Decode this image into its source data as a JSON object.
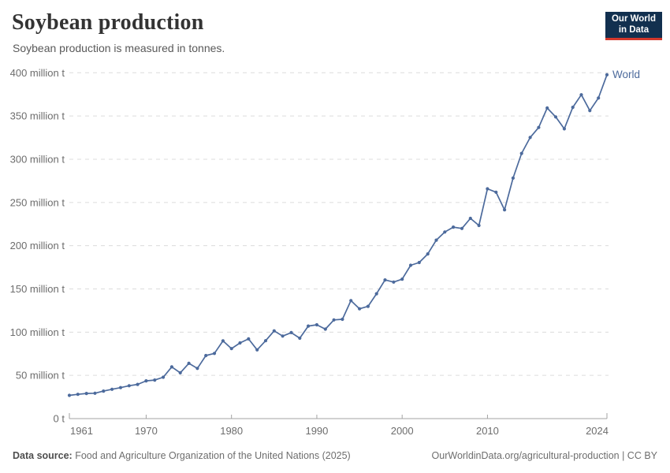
{
  "header": {
    "title": "Soybean production",
    "subtitle": "Soybean production is measured in tonnes."
  },
  "logo": {
    "text": "Our World\nin Data",
    "bg_color": "#12304f",
    "accent_color": "#d3382c"
  },
  "chart_data": {
    "type": "line",
    "title": "Soybean production",
    "unit": "tonnes",
    "values_unit": "million tonnes",
    "grid": "horizontal dashed",
    "legend_position": "end-of-line label",
    "markers": true,
    "xlim": [
      1961,
      2024
    ],
    "ylim": [
      0,
      400
    ],
    "x_ticks": [
      {
        "year": 1961,
        "label": "1961"
      },
      {
        "year": 1970,
        "label": "1970"
      },
      {
        "year": 1980,
        "label": "1980"
      },
      {
        "year": 1990,
        "label": "1990"
      },
      {
        "year": 2000,
        "label": "2000"
      },
      {
        "year": 2010,
        "label": "2010"
      },
      {
        "year": 2024,
        "label": "2024"
      }
    ],
    "y_ticks": [
      {
        "value": 0,
        "label": "0 t"
      },
      {
        "value": 50,
        "label": "50 million t"
      },
      {
        "value": 100,
        "label": "100 million t"
      },
      {
        "value": 150,
        "label": "150 million t"
      },
      {
        "value": 200,
        "label": "200 million t"
      },
      {
        "value": 250,
        "label": "250 million t"
      },
      {
        "value": 300,
        "label": "300 million t"
      },
      {
        "value": 350,
        "label": "350 million t"
      },
      {
        "value": 400,
        "label": "400 million t"
      }
    ],
    "series": [
      {
        "name": "World",
        "color": "#4c6a9c",
        "x": [
          1961,
          1962,
          1963,
          1964,
          1965,
          1966,
          1967,
          1968,
          1969,
          1970,
          1971,
          1972,
          1973,
          1974,
          1975,
          1976,
          1977,
          1978,
          1979,
          1980,
          1981,
          1982,
          1983,
          1984,
          1985,
          1986,
          1987,
          1988,
          1989,
          1990,
          1991,
          1992,
          1993,
          1994,
          1995,
          1996,
          1997,
          1998,
          1999,
          2000,
          2001,
          2002,
          2003,
          2004,
          2005,
          2006,
          2007,
          2008,
          2009,
          2010,
          2011,
          2012,
          2013,
          2014,
          2015,
          2016,
          2017,
          2018,
          2019,
          2020,
          2021,
          2022,
          2023,
          2024
        ],
        "values": [
          26.9,
          28.1,
          29.1,
          29.4,
          31.8,
          33.9,
          35.8,
          38.0,
          39.6,
          43.7,
          44.6,
          47.9,
          59.8,
          53.0,
          63.9,
          58.1,
          72.9,
          75.4,
          89.9,
          81.0,
          87.5,
          92.2,
          79.5,
          90.1,
          101.5,
          95.5,
          99.5,
          93.0,
          107.0,
          108.5,
          103.5,
          114.2,
          114.9,
          136.5,
          127.0,
          129.8,
          144.4,
          160.4,
          157.9,
          161.3,
          177.3,
          180.5,
          190.5,
          206.4,
          215.8,
          221.5,
          219.9,
          231.6,
          223.4,
          265.8,
          261.9,
          241.4,
          278.2,
          306.7,
          325.1,
          336.7,
          359.2,
          348.9,
          335.2,
          360.1,
          374.6,
          356.2,
          370.8,
          397.6
        ]
      }
    ]
  },
  "footer": {
    "datasource_prefix": "Data source:",
    "datasource": " Food and Agriculture Organization of the United Nations (2025)",
    "right": "OurWorldinData.org/agricultural-production | CC BY"
  }
}
